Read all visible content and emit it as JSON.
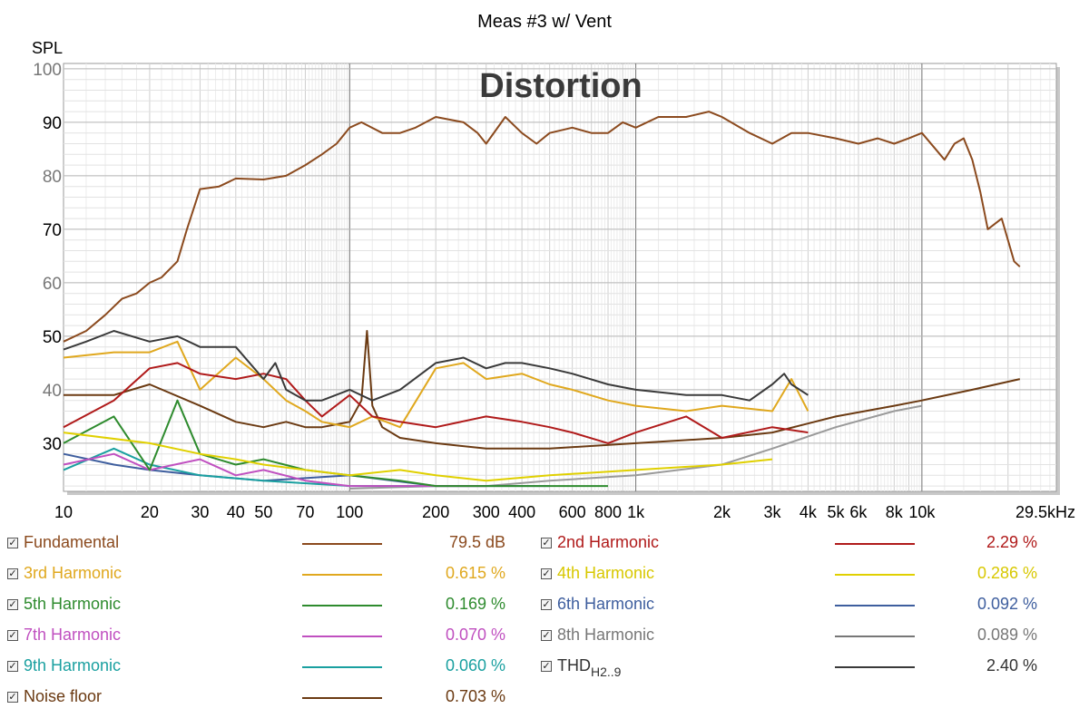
{
  "chart_data": {
    "type": "line",
    "title": "Meas #3 w/ Vent",
    "watermark": "Distortion",
    "ylabel": "SPL",
    "x_unit": "kHz",
    "x_scale": "log",
    "xlim": [
      10,
      29500
    ],
    "ylim": [
      21,
      101
    ],
    "grid": true,
    "y_ticks": [
      30,
      40,
      50,
      60,
      70,
      80,
      90,
      100
    ],
    "y_tick_labels": [
      "30",
      "40",
      "50",
      "60",
      "70",
      "80",
      "90",
      "100"
    ],
    "x_ticks": [
      10,
      20,
      30,
      40,
      50,
      70,
      100,
      200,
      300,
      400,
      600,
      800,
      1000,
      2000,
      3000,
      4000,
      5000,
      6000,
      8000,
      10000,
      29500
    ],
    "x_tick_labels": [
      "10",
      "20",
      "30",
      "40",
      "50",
      "70",
      "100",
      "200",
      "300",
      "400",
      "600",
      "800",
      "1k",
      "2k",
      "3k",
      "4k",
      "5k",
      "6k",
      "8k",
      "10k",
      "29.5kHz"
    ],
    "series": [
      {
        "name": "Fundamental",
        "color": "#8B4A1E",
        "x": [
          10,
          12,
          14,
          16,
          18,
          20,
          22,
          25,
          27,
          30,
          35,
          40,
          50,
          60,
          70,
          80,
          90,
          100,
          110,
          130,
          150,
          170,
          200,
          250,
          280,
          300,
          350,
          400,
          450,
          500,
          600,
          700,
          800,
          900,
          1000,
          1200,
          1500,
          1800,
          2000,
          2500,
          3000,
          3500,
          4000,
          5000,
          6000,
          7000,
          8000,
          9000,
          10000,
          12000,
          13000,
          14000,
          15000,
          16000,
          17000,
          19000,
          21000,
          22000
        ],
        "y": [
          49,
          51,
          54,
          57,
          58,
          60,
          61,
          64,
          70,
          77.5,
          78,
          79.5,
          79.3,
          80,
          82,
          84,
          86,
          89,
          90,
          88,
          88,
          89,
          91,
          90,
          88,
          86,
          91,
          88,
          86,
          88,
          89,
          88,
          88,
          90,
          89,
          91,
          91,
          92,
          91,
          88,
          86,
          88,
          88,
          87,
          86,
          87,
          86,
          87,
          88,
          83,
          86,
          87,
          83,
          77,
          70,
          72,
          64,
          63
        ]
      },
      {
        "name": "2nd Harmonic",
        "color": "#B01A1A",
        "x": [
          10,
          15,
          20,
          25,
          30,
          40,
          50,
          60,
          70,
          80,
          100,
          120,
          150,
          200,
          300,
          400,
          500,
          600,
          800,
          1000,
          1500,
          2000,
          3000,
          4000
        ],
        "y": [
          33,
          38,
          44,
          45,
          43,
          42,
          43,
          42,
          38,
          35,
          39,
          35,
          34,
          33,
          35,
          34,
          33,
          32,
          30,
          32,
          35,
          31,
          33,
          32
        ]
      },
      {
        "name": "3rd Harmonic",
        "color": "#E0A81E",
        "x": [
          10,
          15,
          20,
          25,
          30,
          40,
          50,
          60,
          70,
          80,
          100,
          120,
          150,
          200,
          250,
          300,
          400,
          500,
          600,
          800,
          1000,
          1500,
          2000,
          3000,
          3500,
          4000
        ],
        "y": [
          46,
          47,
          47,
          49,
          40,
          46,
          42,
          38,
          36,
          34,
          33,
          35,
          33,
          44,
          45,
          42,
          43,
          41,
          40,
          38,
          37,
          36,
          37,
          36,
          42,
          36
        ]
      },
      {
        "name": "4th Harmonic",
        "color": "#E0D000",
        "x": [
          10,
          20,
          30,
          40,
          50,
          70,
          100,
          150,
          200,
          300,
          500,
          1000,
          2000,
          3000
        ],
        "y": [
          32,
          30,
          28,
          27,
          26,
          25,
          24,
          25,
          24,
          23,
          24,
          25,
          26,
          27
        ]
      },
      {
        "name": "5th Harmonic",
        "color": "#2E8B2E",
        "x": [
          10,
          15,
          20,
          25,
          30,
          40,
          50,
          70,
          100,
          150,
          200,
          300,
          500,
          800
        ],
        "y": [
          30,
          35,
          25,
          38,
          28,
          26,
          27,
          25,
          24,
          23,
          22,
          22,
          22,
          22
        ]
      },
      {
        "name": "6th Harmonic",
        "color": "#3E5E9E",
        "x": [
          10,
          15,
          20,
          30,
          50,
          100,
          200,
          300,
          500
        ],
        "y": [
          28,
          26,
          25,
          24,
          23,
          24,
          22,
          22,
          22
        ]
      },
      {
        "name": "7th Harmonic",
        "color": "#C050C0",
        "x": [
          10,
          15,
          20,
          30,
          40,
          50,
          70,
          100,
          200,
          300
        ],
        "y": [
          26,
          28,
          25,
          27,
          24,
          25,
          23,
          22,
          22,
          22
        ]
      },
      {
        "name": "8th Harmonic",
        "color": "#9A9A9A",
        "x": [
          100,
          200,
          300,
          500,
          1000,
          2000,
          3000,
          5000,
          8000,
          10000
        ],
        "y": [
          21.5,
          22,
          22,
          23,
          24,
          26,
          29,
          33,
          36,
          37
        ]
      },
      {
        "name": "9th Harmonic",
        "color": "#1AA0A0",
        "x": [
          10,
          15,
          20,
          30,
          50,
          100,
          200
        ],
        "y": [
          25,
          29,
          26,
          24,
          23,
          22,
          22
        ]
      },
      {
        "name": "THD H2..9",
        "color": "#3A3A3A",
        "x": [
          10,
          12,
          15,
          20,
          25,
          30,
          40,
          50,
          55,
          60,
          70,
          80,
          100,
          120,
          150,
          200,
          250,
          300,
          350,
          400,
          500,
          600,
          800,
          1000,
          1500,
          2000,
          2500,
          3000,
          3300,
          3500,
          4000
        ],
        "y": [
          47.5,
          49,
          51,
          49,
          50,
          48,
          48,
          42,
          45,
          40,
          38,
          38,
          40,
          38,
          40,
          45,
          46,
          44,
          45,
          45,
          44,
          43,
          41,
          40,
          39,
          39,
          38,
          41,
          43,
          41,
          39
        ]
      },
      {
        "name": "Noise floor",
        "color": "#6B3A12",
        "x": [
          10,
          15,
          20,
          30,
          40,
          50,
          60,
          70,
          80,
          100,
          110,
          115,
          120,
          130,
          150,
          200,
          300,
          500,
          1000,
          2000,
          3000,
          5000,
          8000,
          10000,
          15000,
          22000
        ],
        "y": [
          39,
          39,
          41,
          37,
          34,
          33,
          34,
          33,
          33,
          34,
          38,
          51,
          37,
          33,
          31,
          30,
          29,
          29,
          30,
          31,
          32,
          35,
          37,
          38,
          40,
          42
        ]
      }
    ]
  },
  "legend": {
    "items": [
      {
        "label": "Fundamental",
        "value": "79.5 dB",
        "color": "#8B4A1E",
        "text_color": "#8B4A1E"
      },
      {
        "label": "2nd Harmonic",
        "value": "2.29 %",
        "color": "#B01A1A",
        "text_color": "#B01A1A"
      },
      {
        "label": "3rd Harmonic",
        "value": "0.615 %",
        "color": "#E0A81E",
        "text_color": "#E0A81E"
      },
      {
        "label": "4th Harmonic",
        "value": "0.286 %",
        "color": "#E0D000",
        "text_color": "#D8C800"
      },
      {
        "label": "5th Harmonic",
        "value": "0.169 %",
        "color": "#2E8B2E",
        "text_color": "#2E8B2E"
      },
      {
        "label": "6th Harmonic",
        "value": "0.092 %",
        "color": "#3E5E9E",
        "text_color": "#3E5E9E"
      },
      {
        "label": "7th Harmonic",
        "value": "0.070 %",
        "color": "#C050C0",
        "text_color": "#C050C0"
      },
      {
        "label": "8th Harmonic",
        "value": "0.089 %",
        "color": "#777777",
        "text_color": "#777777"
      },
      {
        "label": "9th Harmonic",
        "value": "0.060 %",
        "color": "#1AA0A0",
        "text_color": "#1AA0A0"
      },
      {
        "label_main": "THD",
        "label_sub": "H2..9",
        "value": "2.40 %",
        "color": "#3A3A3A",
        "text_color": "#333333"
      },
      {
        "label": "Noise floor",
        "value": "0.703 %",
        "color": "#6B3A12",
        "text_color": "#6B3A12"
      }
    ]
  },
  "checkbox_glyph": "✓"
}
